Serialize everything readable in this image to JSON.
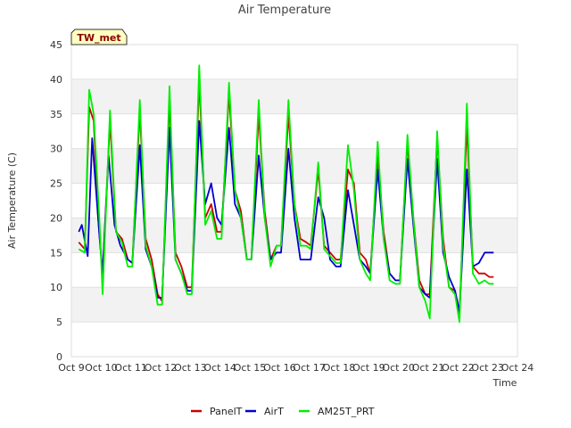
{
  "chart_data": {
    "type": "line",
    "title": "Air Temperature",
    "badge": "TW_met",
    "xlabel": "Time",
    "ylabel": "Air Temperature (C)",
    "ylim": [
      0,
      45
    ],
    "yticks": [
      0,
      5,
      10,
      15,
      20,
      25,
      30,
      35,
      40,
      45
    ],
    "xlim": [
      9,
      24
    ],
    "xticks": [
      {
        "x": 9,
        "label": "Oct 9"
      },
      {
        "x": 10,
        "label": "Oct 10"
      },
      {
        "x": 11,
        "label": "Oct 11"
      },
      {
        "x": 12,
        "label": "Oct 12"
      },
      {
        "x": 13,
        "label": "Oct 13"
      },
      {
        "x": 14,
        "label": "Oct 14"
      },
      {
        "x": 15,
        "label": "Oct 15"
      },
      {
        "x": 16,
        "label": "Oct 16"
      },
      {
        "x": 17,
        "label": "Oct 17"
      },
      {
        "x": 18,
        "label": "Oct 18"
      },
      {
        "x": 19,
        "label": "Oct 19"
      },
      {
        "x": 20,
        "label": "Oct 20"
      },
      {
        "x": 21,
        "label": "Oct 21"
      },
      {
        "x": 22,
        "label": "Oct 22"
      },
      {
        "x": 23,
        "label": "Oct 23"
      },
      {
        "x": 24,
        "label": "Oct 24"
      }
    ],
    "grid": true,
    "band_fill": "#f2f2f2",
    "legend_position": "bottom-center",
    "series": [
      {
        "name": "PanelT",
        "color": "#cc0000",
        "x": [
          9.25,
          9.45,
          9.6,
          9.75,
          9.9,
          10.05,
          10.3,
          10.5,
          10.7,
          10.9,
          11.05,
          11.3,
          11.5,
          11.7,
          11.9,
          12.05,
          12.3,
          12.5,
          12.7,
          12.9,
          13.05,
          13.3,
          13.5,
          13.7,
          13.9,
          14.05,
          14.3,
          14.5,
          14.7,
          14.9,
          15.05,
          15.3,
          15.5,
          15.7,
          15.9,
          16.05,
          16.3,
          16.5,
          16.7,
          16.9,
          17.05,
          17.3,
          17.5,
          17.7,
          17.9,
          18.05,
          18.3,
          18.5,
          18.7,
          18.9,
          19.05,
          19.3,
          19.5,
          19.7,
          19.9,
          20.05,
          20.3,
          20.5,
          20.7,
          20.9,
          21.05,
          21.3,
          21.5,
          21.7,
          21.9,
          22.05,
          22.3,
          22.5,
          22.7,
          22.9,
          23.05,
          23.2
        ],
        "y": [
          16.5,
          15.5,
          36,
          34,
          20,
          12,
          34,
          18,
          17,
          14,
          13.5,
          35.5,
          17,
          14,
          9,
          8,
          37,
          15,
          13,
          10,
          10,
          40,
          20,
          22,
          18,
          18,
          38,
          24,
          21,
          14,
          14,
          35,
          21,
          14,
          16,
          16,
          35,
          22,
          17,
          16.5,
          16,
          27,
          16,
          15,
          14,
          14,
          27,
          25,
          15,
          14,
          12,
          29,
          18,
          12,
          11,
          11,
          31,
          20,
          11,
          9,
          9,
          31.5,
          17,
          10,
          9.5,
          6,
          33.5,
          13,
          12,
          12,
          11.5,
          11.5
        ]
      },
      {
        "name": "AirT",
        "color": "#0000cc",
        "x": [
          9.25,
          9.35,
          9.55,
          9.7,
          9.95,
          10.05,
          10.25,
          10.45,
          10.65,
          10.9,
          11.05,
          11.3,
          11.5,
          11.7,
          11.9,
          12.05,
          12.3,
          12.5,
          12.7,
          12.9,
          13.05,
          13.3,
          13.5,
          13.7,
          13.9,
          14.05,
          14.3,
          14.5,
          14.7,
          14.9,
          15.05,
          15.3,
          15.5,
          15.7,
          15.9,
          16.05,
          16.3,
          16.5,
          16.7,
          16.9,
          17.05,
          17.3,
          17.5,
          17.7,
          17.9,
          18.05,
          18.3,
          18.5,
          18.7,
          18.9,
          19.05,
          19.3,
          19.5,
          19.7,
          19.9,
          20.05,
          20.3,
          20.5,
          20.7,
          20.9,
          21.05,
          21.3,
          21.5,
          21.7,
          21.9,
          22.05,
          22.3,
          22.5,
          22.7,
          22.9,
          23.05,
          23.2
        ],
        "y": [
          18,
          19,
          14.5,
          31.5,
          17,
          12,
          29,
          19,
          16,
          14,
          13.5,
          30.5,
          15.5,
          13,
          8.5,
          8.5,
          33,
          14,
          12,
          9.5,
          9.5,
          34,
          22,
          25,
          20,
          19,
          33,
          22,
          20,
          14,
          14,
          29,
          20,
          14,
          15,
          15,
          30,
          20,
          14,
          14,
          14,
          23,
          20,
          14,
          13,
          13,
          24,
          19,
          14,
          13,
          12,
          27,
          17,
          12,
          11,
          11,
          28.5,
          19,
          10,
          9,
          8.5,
          28.5,
          15,
          11.5,
          9.5,
          6.5,
          27,
          13,
          13.5,
          15,
          15,
          15
        ]
      },
      {
        "name": "AM25T_PRT",
        "color": "#00ee00",
        "x": [
          9.25,
          9.45,
          9.6,
          9.75,
          9.95,
          10.05,
          10.3,
          10.5,
          10.7,
          10.9,
          11.05,
          11.3,
          11.5,
          11.7,
          11.9,
          12.05,
          12.3,
          12.5,
          12.7,
          12.9,
          13.05,
          13.3,
          13.5,
          13.7,
          13.9,
          14.05,
          14.3,
          14.5,
          14.7,
          14.9,
          15.05,
          15.3,
          15.5,
          15.7,
          15.9,
          16.05,
          16.3,
          16.5,
          16.7,
          16.9,
          17.05,
          17.3,
          17.5,
          17.7,
          17.9,
          18.05,
          18.3,
          18.5,
          18.7,
          18.9,
          19.05,
          19.3,
          19.5,
          19.7,
          19.9,
          20.05,
          20.3,
          20.5,
          20.7,
          20.9,
          21.05,
          21.3,
          21.5,
          21.7,
          21.9,
          22.05,
          22.3,
          22.5,
          22.7,
          22.9,
          23.05,
          23.2
        ],
        "y": [
          15.5,
          15,
          38.5,
          35,
          19,
          9,
          35.5,
          18,
          16.5,
          13,
          13,
          37,
          16,
          13,
          7.5,
          7.5,
          39,
          14,
          12,
          9,
          9,
          42,
          19,
          21,
          17,
          17,
          39.5,
          24,
          20,
          14,
          14,
          37,
          20,
          13,
          16,
          16,
          37,
          22,
          16,
          16,
          15.5,
          28,
          15.5,
          14.5,
          13.5,
          13.5,
          30.5,
          24,
          14,
          12,
          11,
          31,
          17,
          11,
          10.5,
          10.5,
          32,
          20,
          10,
          8,
          5.5,
          32.5,
          16,
          10,
          9,
          5,
          36.5,
          12,
          10.5,
          11,
          10.5,
          10.5
        ]
      }
    ]
  }
}
